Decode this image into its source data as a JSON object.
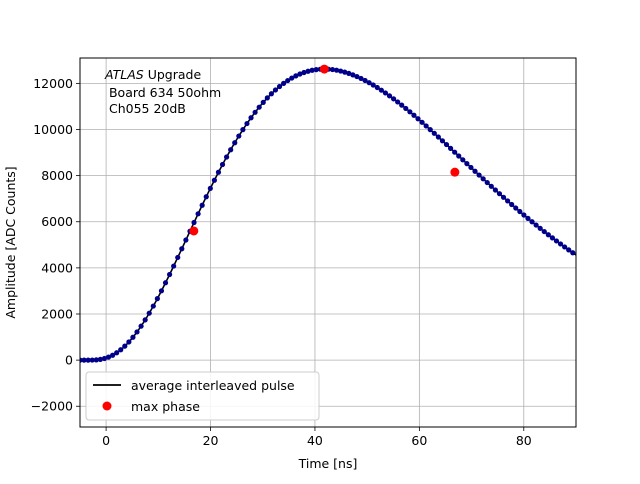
{
  "chart_data": {
    "type": "scatter",
    "title": "",
    "xlabel": "Time [ns]",
    "ylabel": "Amplitude [ADC Counts]",
    "xlim": [
      -5,
      90
    ],
    "ylim": [
      -2900,
      13100
    ],
    "grid": true,
    "legend_placement": "lower-left",
    "x_ticks": [
      0,
      20,
      40,
      60,
      80
    ],
    "y_ticks": [
      -2000,
      0,
      2000,
      4000,
      6000,
      8000,
      10000,
      12000
    ],
    "x_tick_labels": [
      "0",
      "20",
      "40",
      "60",
      "80"
    ],
    "y_tick_labels": [
      "−2000",
      "0",
      "2000",
      "4000",
      "6000",
      "8000",
      "10000",
      "12000"
    ],
    "annotation": {
      "experiment_italic": "ATLAS",
      "line1_rest": " Upgrade",
      "line2": " Board 634 50ohm",
      "line3": " Ch055 20dB"
    },
    "pulse_params": {
      "t0": -3.5,
      "peak_time": 41.8,
      "peak_amplitude": 12620,
      "shape_n": 3,
      "sample_step_ns": 0.78
    },
    "series": [
      {
        "name": "average interleaved pulse",
        "kind": "line",
        "color": "#000000"
      },
      {
        "name": "max phase",
        "kind": "markers",
        "color": "#ff0000",
        "points": [
          [
            16.8,
            5600
          ],
          [
            41.8,
            12620
          ],
          [
            66.8,
            8150
          ]
        ]
      }
    ],
    "sample_marker_color": "#00008b"
  }
}
